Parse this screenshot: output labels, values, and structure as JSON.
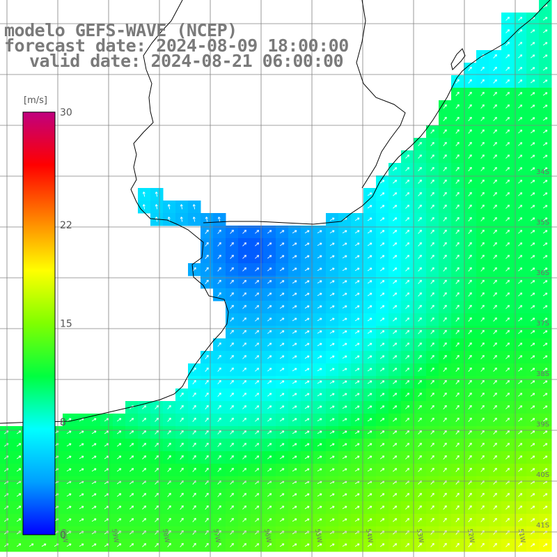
{
  "title": {
    "line1": "modelo GEFS-WAVE (NCEP)",
    "line2": "forecast date: 2024-08-09 18:00:00",
    "line3": "valid date: 2024-08-21 06:00:00"
  },
  "colorbar": {
    "unit": "[m/s]",
    "ticks": [
      {
        "value": 30,
        "label": "30"
      },
      {
        "value": 22,
        "label": "22"
      },
      {
        "value": 15,
        "label": "15"
      },
      {
        "value": 8,
        "label": "8"
      },
      {
        "value": 0,
        "label": "0"
      }
    ],
    "stops": [
      "#0000ff",
      "#00a0ff",
      "#00ffff",
      "#00ff40",
      "#80ff00",
      "#ffff00",
      "#ff8000",
      "#ff0000",
      "#c0007f"
    ]
  },
  "axes": {
    "lat_labels": [
      "34S",
      "35S",
      "36S",
      "37S",
      "38S",
      "39S",
      "40S",
      "41S"
    ],
    "lon_labels": [
      "60W",
      "59W",
      "58W",
      "57W",
      "56W",
      "55W",
      "54W",
      "53W",
      "52W",
      "51W"
    ]
  },
  "colors": {
    "land": "#ffffff",
    "coast": "#000000",
    "grid": "#808080",
    "arrows": "#ffffff"
  }
}
